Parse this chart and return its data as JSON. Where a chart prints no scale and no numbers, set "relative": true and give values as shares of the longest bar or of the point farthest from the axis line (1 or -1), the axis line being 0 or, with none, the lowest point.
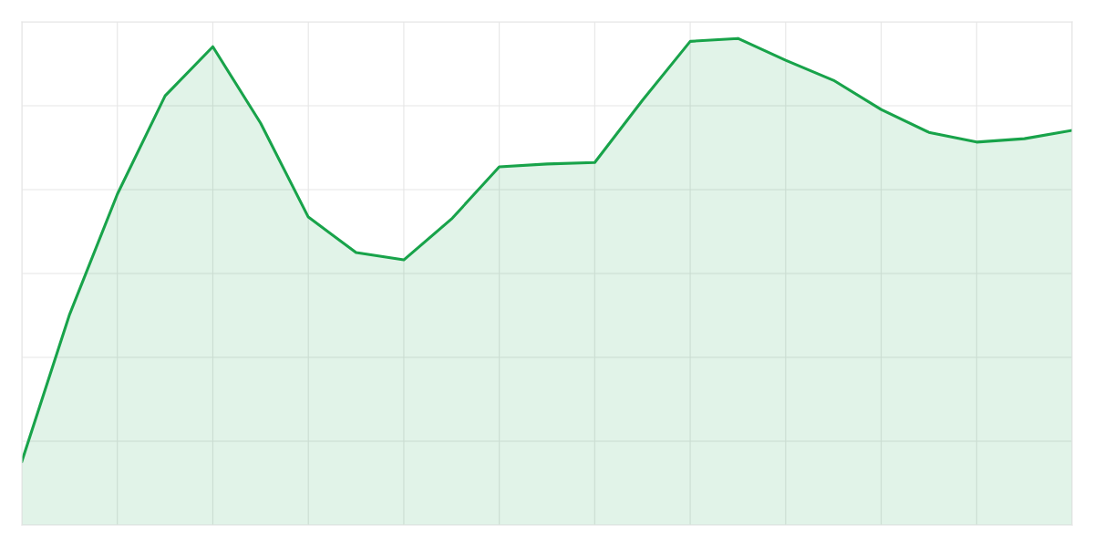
{
  "chart_data": {
    "type": "area",
    "relative": true,
    "grid": true,
    "categories": [
      null,
      null,
      null,
      null,
      null,
      null,
      null,
      null,
      null,
      null,
      null,
      null,
      null,
      null,
      null,
      null,
      null,
      null,
      null,
      null,
      null,
      null,
      null
    ],
    "series": [
      {
        "color": "#18a34a",
        "values": [
          0.131,
          0.433,
          0.68,
          0.882,
          0.983,
          0.826,
          0.633,
          0.56,
          0.545,
          0.629,
          0.736,
          0.742,
          0.745,
          0.873,
          0.994,
          1,
          0.955,
          0.914,
          0.854,
          0.807,
          0.787,
          0.794,
          0.811
        ]
      }
    ]
  }
}
